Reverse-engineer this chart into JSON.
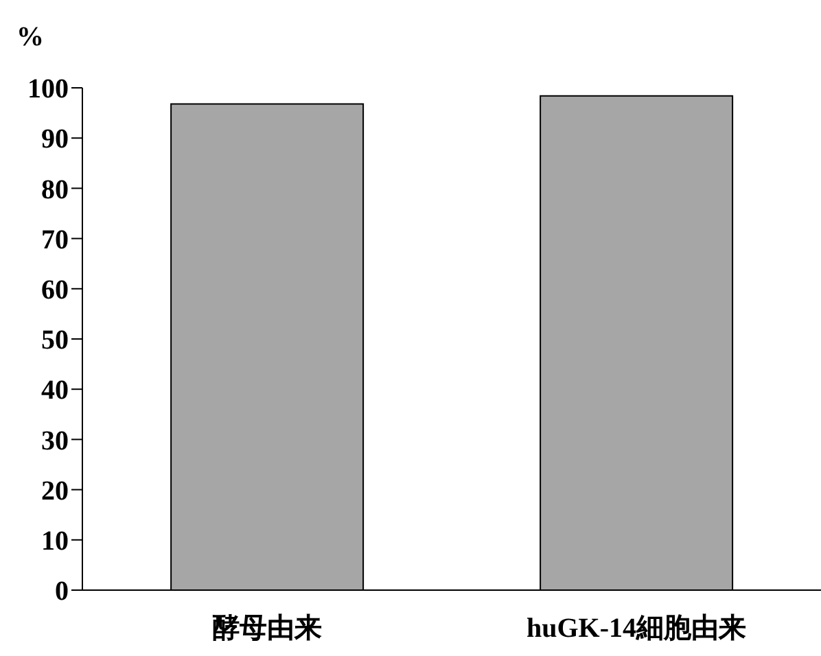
{
  "chart_data": {
    "type": "bar",
    "ylabel": "%",
    "categories": [
      "酵母由来",
      "huGK-14細胞由来"
    ],
    "values": [
      96.8,
      98.4
    ],
    "color": "#a6a6a6",
    "ylim": [
      0,
      100
    ],
    "yticks": [
      0,
      10,
      20,
      30,
      40,
      50,
      60,
      70,
      80,
      90,
      100
    ],
    "grid": false,
    "legend": false
  }
}
